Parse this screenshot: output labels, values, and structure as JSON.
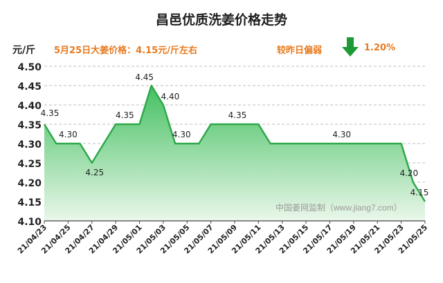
{
  "title": "昌邑优质洗姜价格走势",
  "unit_label": "元/斤",
  "info_text": "5月25日大姜价格：4.15元/斤左右",
  "trend_label": "较昨日偏弱",
  "trend_pct": "1.20%",
  "trend_icon": "down-arrow-icon",
  "watermark": "中国姜网监制（www.jiang7.com）",
  "colors": {
    "line": "#2ea84a",
    "fill_top": "#44c061",
    "fill_bottom": "#eaf7ea",
    "accent": "#e8791e",
    "arrow": "#1e9a34"
  },
  "chart_data": {
    "type": "area",
    "x": [
      "21/04/23",
      "21/04/24",
      "21/04/25",
      "21/04/26",
      "21/04/27",
      "21/04/28",
      "21/04/29",
      "21/04/30",
      "21/05/01",
      "21/05/02",
      "21/05/03",
      "21/05/04",
      "21/05/05",
      "21/05/06",
      "21/05/07",
      "21/05/08",
      "21/05/09",
      "21/05/10",
      "21/05/11",
      "21/05/12",
      "21/05/13",
      "21/05/14",
      "21/05/15",
      "21/05/16",
      "21/05/17",
      "21/05/18",
      "21/05/19",
      "21/05/20",
      "21/05/21",
      "21/05/22",
      "21/05/23",
      "21/05/24",
      "21/05/25"
    ],
    "values": [
      4.35,
      4.3,
      4.3,
      4.3,
      4.25,
      4.3,
      4.35,
      4.35,
      4.35,
      4.45,
      4.4,
      4.3,
      4.3,
      4.3,
      4.35,
      4.35,
      4.35,
      4.35,
      4.35,
      4.3,
      4.3,
      4.3,
      4.3,
      4.3,
      4.3,
      4.3,
      4.3,
      4.3,
      4.3,
      4.3,
      4.3,
      4.2,
      4.15
    ],
    "data_labels": [
      {
        "index": 0,
        "text": "4.35"
      },
      {
        "index": 2,
        "text": "4.30"
      },
      {
        "index": 4,
        "text": "4.25"
      },
      {
        "index": 7,
        "text": "4.35"
      },
      {
        "index": 9,
        "text": "4.45"
      },
      {
        "index": 10,
        "text": "4.40"
      },
      {
        "index": 12,
        "text": "4.30"
      },
      {
        "index": 16,
        "text": "4.35"
      },
      {
        "index": 25,
        "text": "4.30"
      },
      {
        "index": 31,
        "text": "4.20"
      },
      {
        "index": 32,
        "text": "4.15"
      }
    ],
    "xticks": [
      "21/04/23",
      "21/04/25",
      "21/04/27",
      "21/04/29",
      "21/05/01",
      "21/05/03",
      "21/05/05",
      "21/05/07",
      "21/05/09",
      "21/05/11",
      "21/05/13",
      "21/05/15",
      "21/05/17",
      "21/05/19",
      "21/05/21",
      "21/05/23",
      "21/05/25"
    ],
    "yticks": [
      "4.10",
      "4.15",
      "4.20",
      "4.25",
      "4.30",
      "4.35",
      "4.40",
      "4.45",
      "4.50"
    ],
    "ylim": [
      4.1,
      4.5
    ],
    "grid": true,
    "xlabel": "",
    "ylabel": "元/斤"
  }
}
